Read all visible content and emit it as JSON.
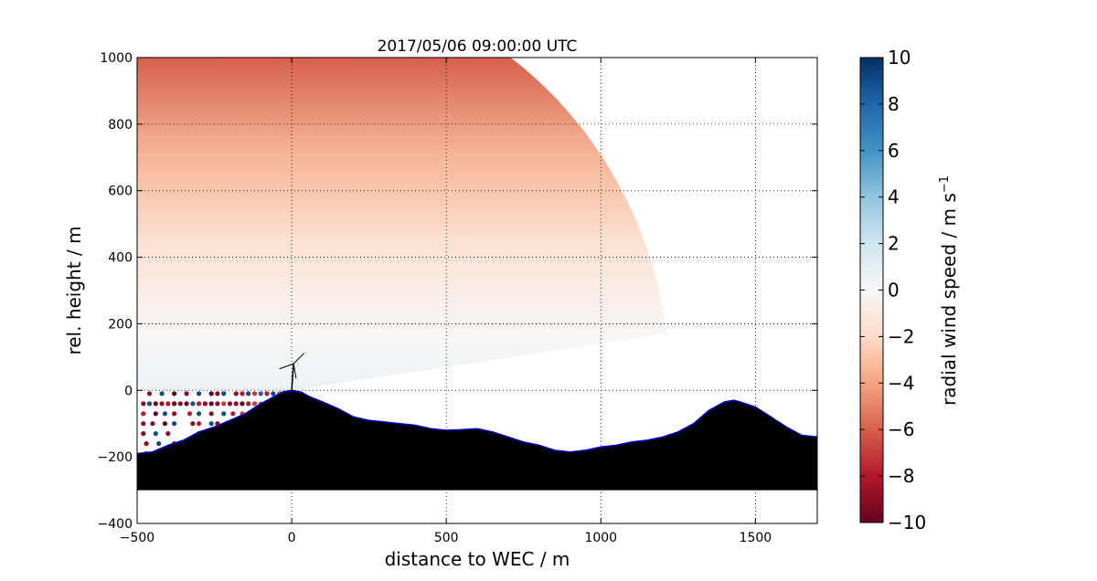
{
  "chart_data": {
    "type": "heatmap",
    "title": "2017/05/06 09:00:00 UTC",
    "xlabel": "distance to WEC / m",
    "ylabel": "rel. height / m",
    "xlim": [
      -500,
      1700
    ],
    "ylim": [
      -400,
      1000
    ],
    "xticks": [
      -500,
      0,
      500,
      1000,
      1500
    ],
    "yticks": [
      -400,
      -200,
      0,
      200,
      400,
      600,
      800,
      1000
    ],
    "grid": true,
    "colorbar": {
      "label": "radial wind speed / m s",
      "label_superscript": "−1",
      "range": [
        -10,
        10
      ],
      "ticks": [
        -10,
        -8,
        -6,
        -4,
        -2,
        0,
        2,
        4,
        6,
        8,
        10
      ],
      "colormap": "RdBu",
      "low_color": "#67001f",
      "mid_color": "#f7f7f7",
      "high_color": "#053061",
      "placement": "right"
    },
    "scan_sector": {
      "origin": [
        0,
        0
      ],
      "range_m": 1225,
      "angle_deg": [
        8,
        90
      ],
      "top_speed": -5,
      "bottom_speed": 1
    },
    "wec": {
      "x": 0,
      "hub_height": 80,
      "rotor_radius": 45
    },
    "terrain": {
      "fill_color": "#000000",
      "edge_color": "#0000cc",
      "base": -300,
      "x": [
        -500,
        -450,
        -400,
        -350,
        -300,
        -250,
        -200,
        -150,
        -100,
        -60,
        -30,
        0,
        30,
        60,
        100,
        150,
        200,
        250,
        300,
        350,
        400,
        450,
        500,
        550,
        600,
        650,
        700,
        750,
        800,
        850,
        900,
        950,
        1000,
        1050,
        1100,
        1150,
        1200,
        1250,
        1300,
        1350,
        1400,
        1430,
        1450,
        1500,
        1550,
        1600,
        1650,
        1700
      ],
      "y": [
        -190,
        -185,
        -165,
        -150,
        -125,
        -110,
        -90,
        -70,
        -40,
        -20,
        -5,
        0,
        -5,
        -20,
        -35,
        -55,
        -80,
        -90,
        -95,
        -100,
        -105,
        -115,
        -120,
        -118,
        -115,
        -125,
        -140,
        -155,
        -165,
        -180,
        -185,
        -180,
        -170,
        -165,
        -155,
        -150,
        -140,
        -125,
        -100,
        -60,
        -35,
        -30,
        -35,
        -50,
        -80,
        -110,
        -135,
        -140
      ]
    }
  }
}
